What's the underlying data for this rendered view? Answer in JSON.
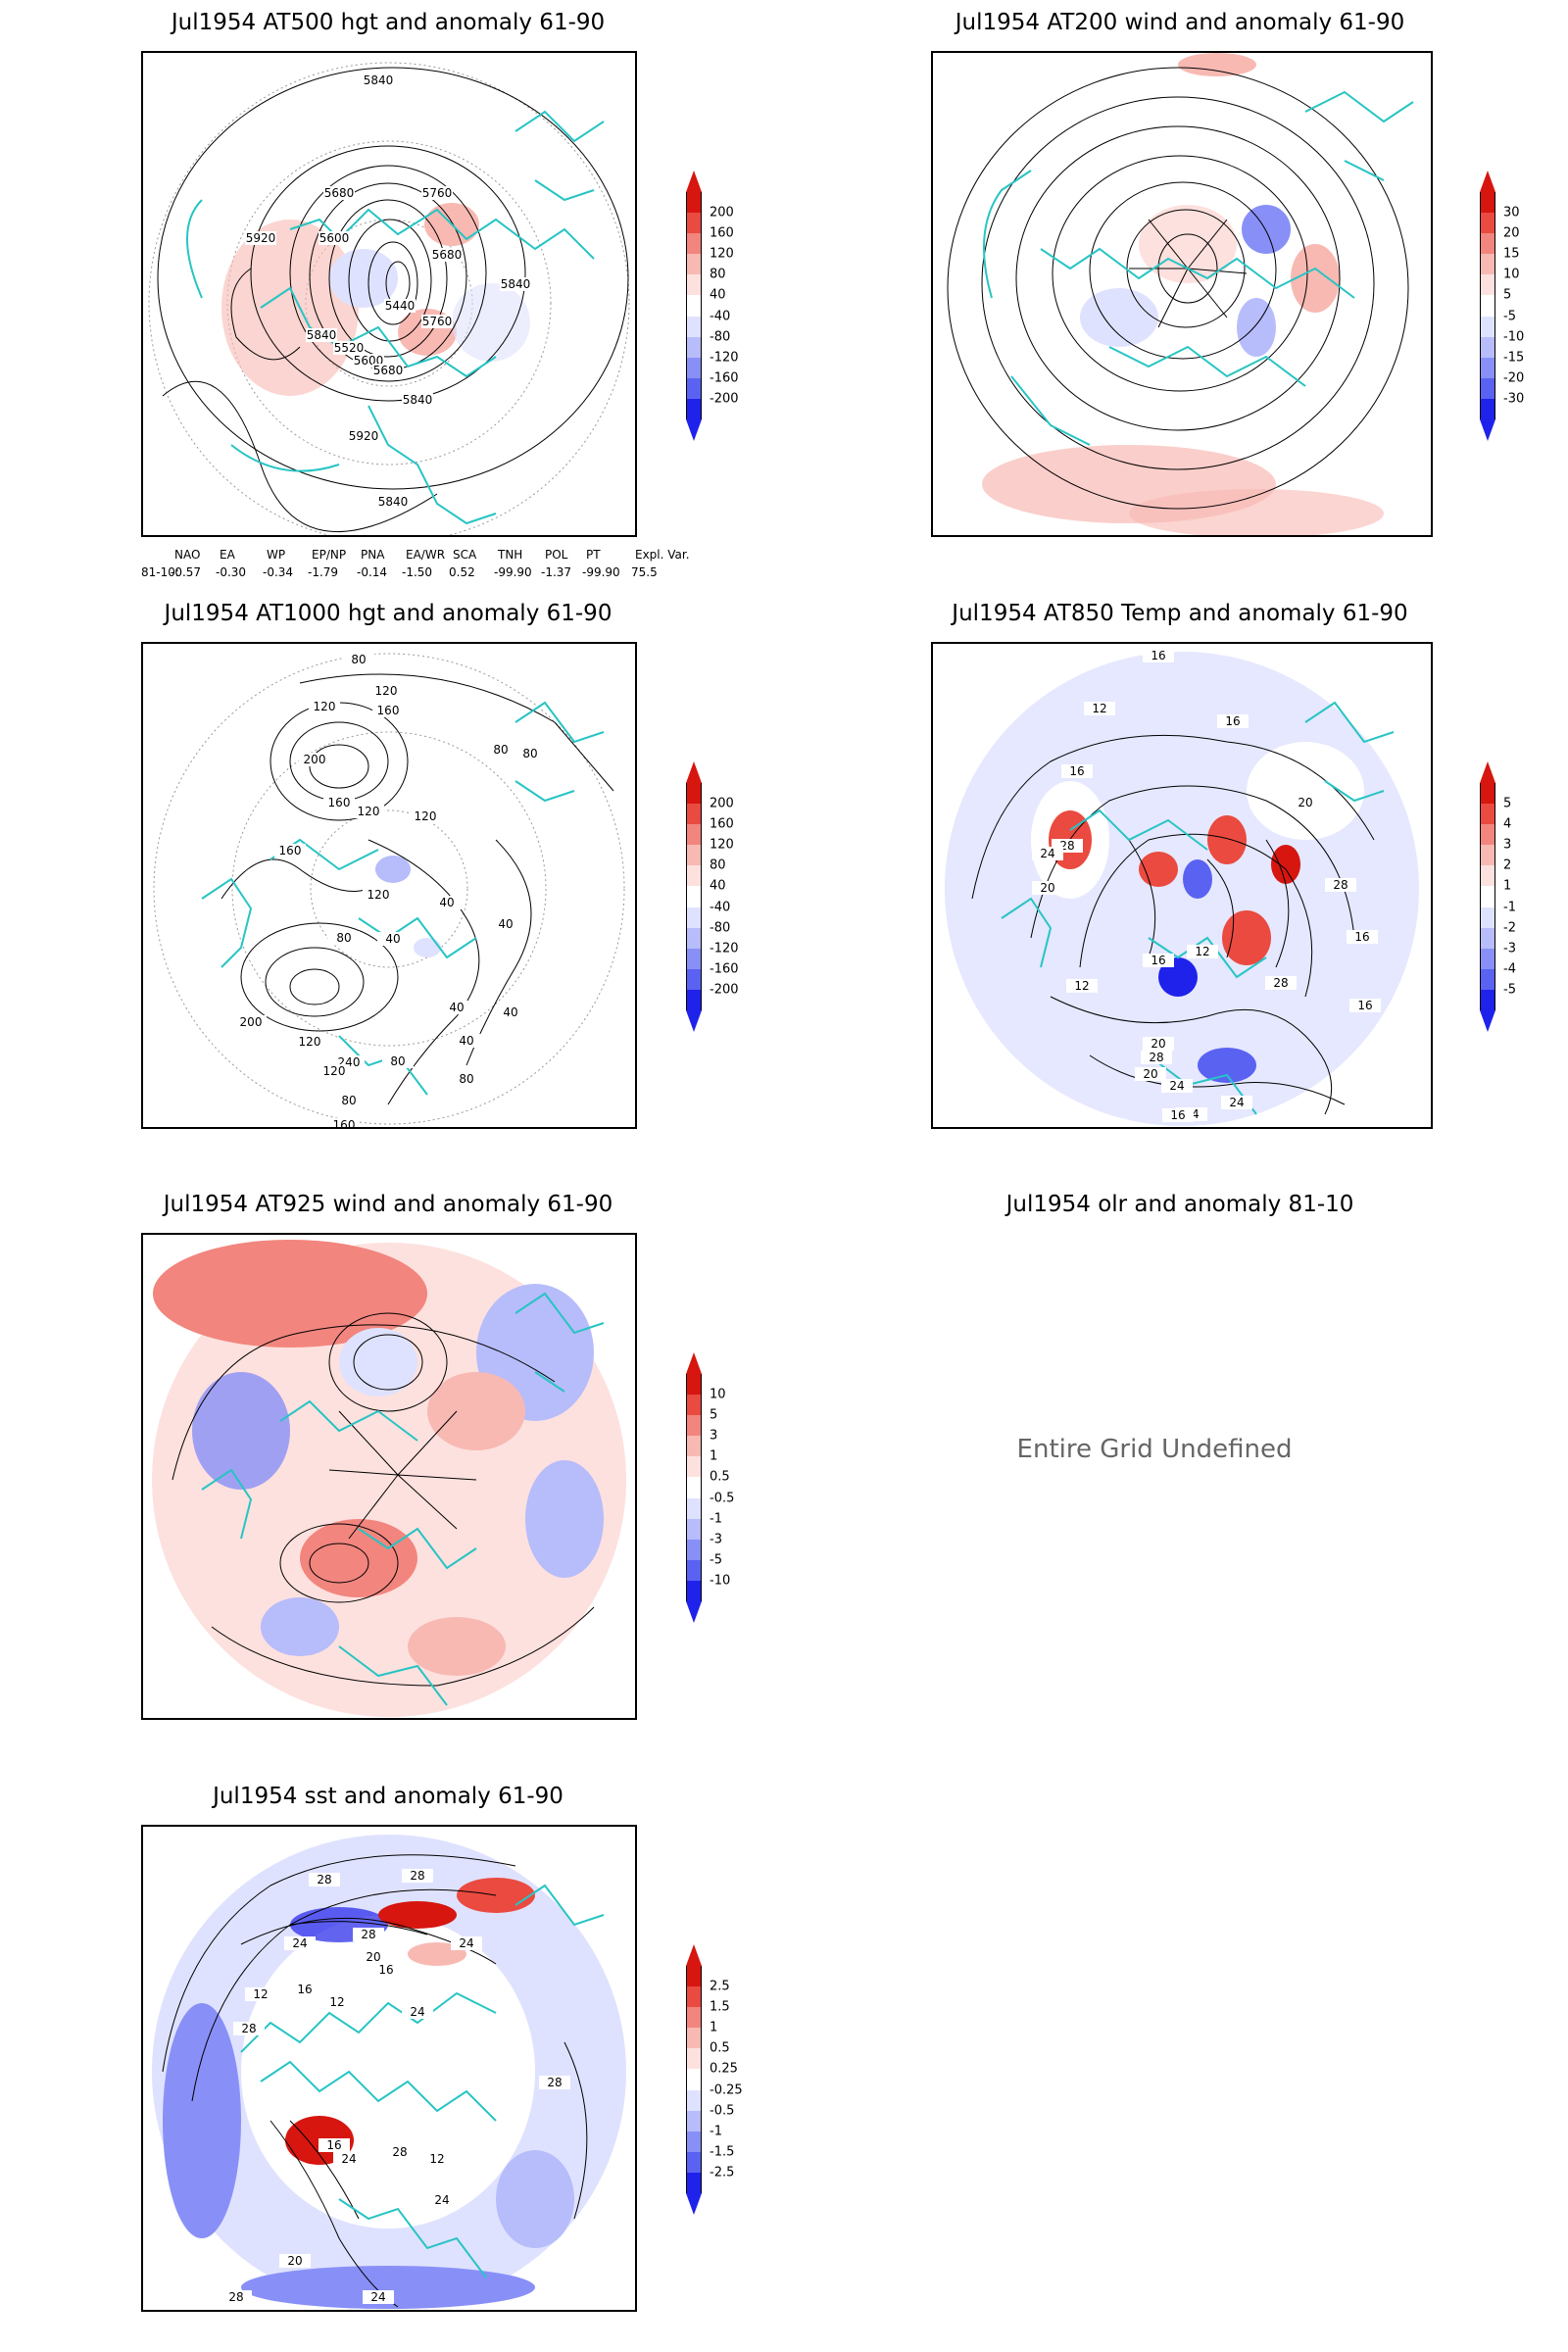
{
  "panels": [
    {
      "id": "p500",
      "title": "Jul1954 AT500 hgt and anomaly 61-90",
      "contours": [
        "5840",
        "5760",
        "5680",
        "5840",
        "5600",
        "5920",
        "5440",
        "5680",
        "5760",
        "5520",
        "5600",
        "5680",
        "5840",
        "5920",
        "5840",
        "5840"
      ],
      "colorbar": {
        "labels": [
          "200",
          "160",
          "120",
          "80",
          "40",
          "-40",
          "-80",
          "-120",
          "-160",
          "-200"
        ]
      }
    },
    {
      "id": "p200",
      "title": "Jul1954 AT200 wind and anomaly 61-90",
      "colorbar": {
        "labels": [
          "30",
          "20",
          "15",
          "10",
          "5",
          "-5",
          "-10",
          "-15",
          "-20",
          "-30"
        ]
      }
    },
    {
      "id": "p1000",
      "title": "Jul1954 AT1000 hgt and anomaly 61-90",
      "contours": [
        "80",
        "120",
        "120",
        "160",
        "200",
        "160",
        "120",
        "80",
        "120",
        "120",
        "80",
        "40",
        "40",
        "80",
        "160",
        "40",
        "40",
        "200",
        "120",
        "240",
        "80",
        "40",
        "160",
        "80",
        "120",
        "80",
        "40"
      ],
      "colorbar": {
        "labels": [
          "200",
          "160",
          "120",
          "80",
          "40",
          "-40",
          "-80",
          "-120",
          "-160",
          "-200"
        ]
      }
    },
    {
      "id": "p850",
      "title": "Jul1954 AT850 Temp and anomaly 61-90",
      "contours": [
        "16",
        "12",
        "16",
        "20",
        "16",
        "28",
        "24",
        "20",
        "28",
        "12",
        "28",
        "16",
        "12",
        "16",
        "20",
        "28",
        "24",
        "24",
        "16",
        "24",
        "20",
        "16"
      ],
      "colorbar": {
        "labels": [
          "5",
          "4",
          "3",
          "2",
          "1",
          "-1",
          "-2",
          "-3",
          "-4",
          "-5"
        ]
      }
    },
    {
      "id": "p925",
      "title": "Jul1954 AT925 wind and anomaly 61-90",
      "colorbar": {
        "labels": [
          "10",
          "5",
          "3",
          "1",
          "0.5",
          "-0.5",
          "-1",
          "-3",
          "-5",
          "-10"
        ]
      }
    },
    {
      "id": "polr",
      "title": "Jul1954 olr and anomaly 81-10",
      "message": "Entire Grid Undefined"
    },
    {
      "id": "psst",
      "title": "Jul1954 sst and anomaly 61-90",
      "contours": [
        "28",
        "28",
        "24",
        "24",
        "28",
        "20",
        "16",
        "12",
        "16",
        "24",
        "28",
        "12",
        "28",
        "28",
        "24",
        "16",
        "12",
        "20",
        "24",
        "28",
        "24"
      ],
      "colorbar": {
        "labels": [
          "2.5",
          "1.5",
          "1",
          "0.5",
          "0.25",
          "-0.25",
          "-0.5",
          "-1",
          "-1.5",
          "-2.5"
        ]
      }
    }
  ],
  "indices": {
    "header": [
      "NAO",
      "EA",
      "WP",
      "EP/NP",
      "PNA",
      "EA/WR",
      "SCA",
      "TNH",
      "POL",
      "PT",
      "Expl. Var."
    ],
    "row_label": "81-10:",
    "values": [
      "-0.57",
      "-0.30",
      "-0.34",
      "-1.79",
      "-0.14",
      "-1.50",
      "0.52",
      "-99.90",
      "-1.37",
      "-99.90",
      "75.5"
    ]
  },
  "colors": {
    "coast": "#27c4c4",
    "contour": "#000000",
    "pos": [
      "#d6160f",
      "#ea4a40",
      "#f2857e",
      "#f8b9b3",
      "#fde1de"
    ],
    "neg": [
      "#dfe2fe",
      "#b7bcfb",
      "#8890f7",
      "#5a62f2",
      "#1f22ea"
    ]
  }
}
